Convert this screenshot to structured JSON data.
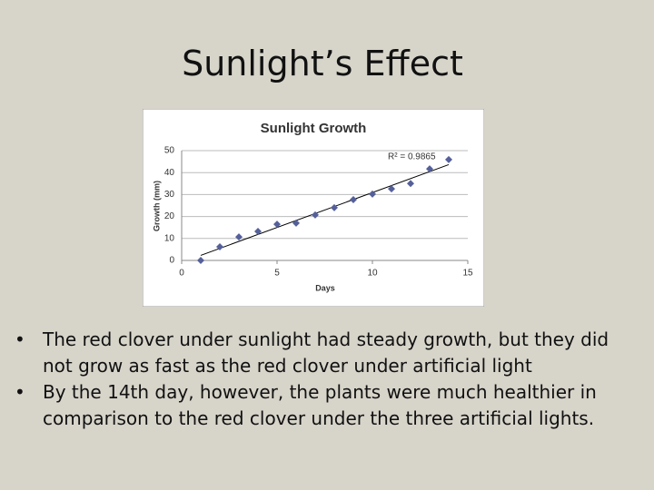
{
  "slide": {
    "title": "Sunlight’s Effect",
    "bullets": [
      "The red clover under sunlight had steady growth, but they did not grow as fast as the red clover under artificial light",
      "By the 14th day, however, the plants were much healthier in comparison to the red clover under the three artificial lights."
    ]
  },
  "chart_data": {
    "type": "scatter",
    "title": "Sunlight Growth",
    "x_label": "Days",
    "y_label": "Growth (mm)",
    "x": [
      1,
      2,
      3,
      4,
      5,
      6,
      7,
      8,
      9,
      10,
      11,
      12,
      13,
      14
    ],
    "values": [
      0,
      6.2,
      10.7,
      13.2,
      16.5,
      17,
      20.7,
      24,
      27.7,
      30.2,
      32.6,
      35,
      41.7,
      45.9
    ],
    "color": "#55609a",
    "trendline": true,
    "trendline_color": "#000000",
    "annotation": "R² = 0.9865",
    "xlim": [
      0,
      15
    ],
    "xticks": [
      0,
      5,
      10,
      15
    ],
    "ylim": [
      0,
      50
    ],
    "yticks": [
      0,
      10,
      20,
      30,
      40,
      50
    ],
    "grid": true
  }
}
